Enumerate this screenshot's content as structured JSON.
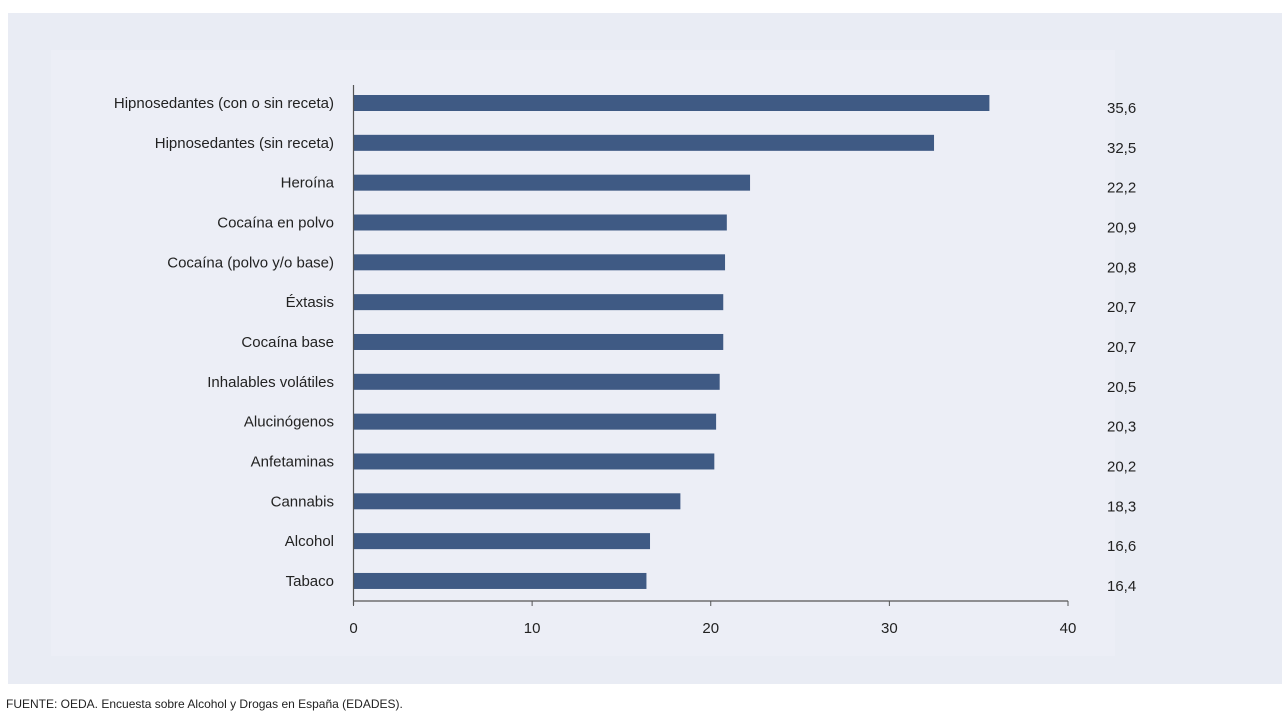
{
  "chart_data": {
    "type": "bar",
    "orientation": "horizontal",
    "title": "",
    "xlabel": "",
    "ylabel": "",
    "categories": [
      "Hipnosedantes (con o sin receta)",
      "Hipnosedantes (sin receta)",
      "Heroína",
      "Cocaína en polvo",
      "Cocaína (polvo y/o base)",
      "Éxtasis",
      "Cocaína base",
      "Inhalables volátiles",
      "Alucinógenos",
      "Anfetaminas",
      "Cannabis",
      "Alcohol",
      "Tabaco"
    ],
    "values": [
      35.6,
      32.5,
      22.2,
      20.9,
      20.8,
      20.7,
      20.7,
      20.5,
      20.3,
      20.2,
      18.3,
      16.6,
      16.4
    ],
    "value_labels": [
      "35,6",
      "32,5",
      "22,2",
      "20,9",
      "20,8",
      "20,7",
      "20,7",
      "20,5",
      "20,3",
      "20,2",
      "18,3",
      "16,6",
      "16,4"
    ],
    "xlim": [
      0,
      40
    ],
    "xticks": [
      0,
      10,
      20,
      30,
      40
    ],
    "xtick_labels": [
      "0",
      "10",
      "20",
      "30",
      "40"
    ],
    "grid": false,
    "legend": "none",
    "bar_color": "#3f5a84"
  },
  "source": "FUENTE: OEDA. Encuesta sobre Alcohol y Drogas en España (EDADES)."
}
